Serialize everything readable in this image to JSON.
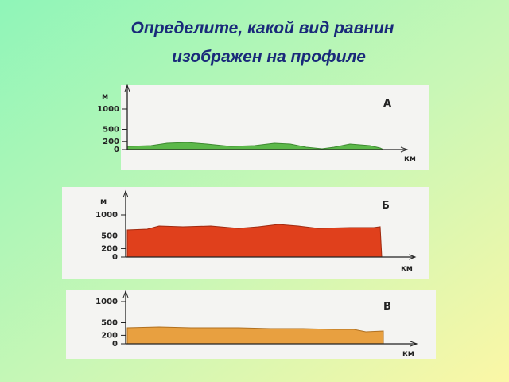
{
  "header": {
    "title_line1": "Определите, какой вид равнин",
    "title_line2": "изображен на профиле"
  },
  "panels": [
    {
      "letter": "А",
      "y_unit": "м",
      "x_unit": "км",
      "ticks": [
        1000,
        500,
        200,
        0
      ]
    },
    {
      "letter": "Б",
      "y_unit": "м",
      "x_unit": "км",
      "ticks": [
        1000,
        500,
        200,
        0
      ]
    },
    {
      "letter": "В",
      "x_unit": "км",
      "ticks": [
        1000,
        500,
        200,
        0
      ]
    }
  ]
}
